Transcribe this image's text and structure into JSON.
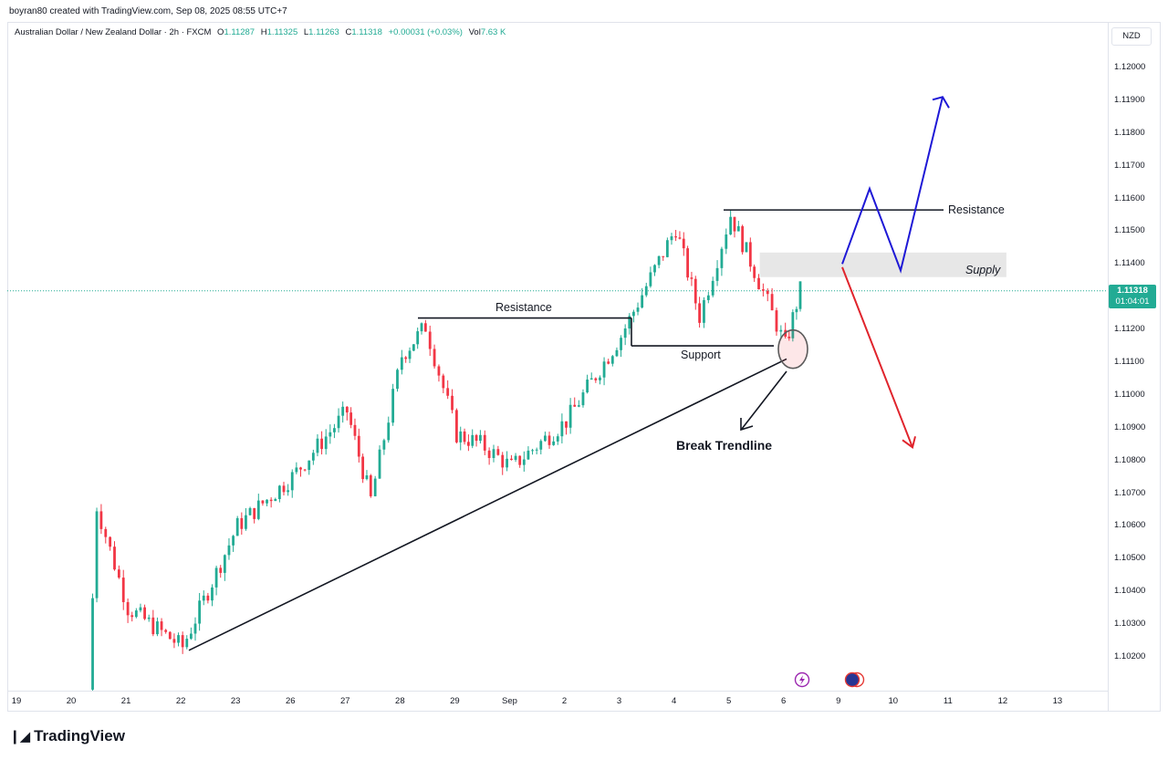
{
  "header": {
    "created_by": "boyran80 created with TradingView.com, Sep 08, 2025 08:55 UTC+7"
  },
  "legend": {
    "symbol": "Australian Dollar / New Zealand Dollar · 2h · FXCM",
    "open_label": "O",
    "open": "1.11287",
    "high_label": "H",
    "high": "1.11325",
    "low_label": "L",
    "low": "1.11263",
    "close_label": "C",
    "close": "1.11318",
    "change": "+0.00031 (+0.03%)",
    "vol_label": "Vol",
    "vol": "7.63 K"
  },
  "currency": "NZD",
  "last_price": {
    "price": "1.11318",
    "countdown": "01:04:01"
  },
  "colors": {
    "up": "#22ab94",
    "down": "#f23645",
    "bullish_path": "#1e18d6",
    "bearish_path": "#e0242c",
    "supply_zone": "#e7e7e7",
    "price_line": "#22ab94"
  },
  "annotations": {
    "resistance_left": "Resistance",
    "support": "Support",
    "resistance_right": "Resistance",
    "supply": "Supply",
    "break_trendline": "Break Trendline"
  },
  "bottom_icons": [
    "lightning-event-icon",
    "news-flag-icon"
  ],
  "brand": "TradingView",
  "chart_data": {
    "type": "candlestick",
    "title": "",
    "ylabel": "",
    "ylim": [
      1.1012,
      1.1212
    ],
    "y_ticks": [
      "1.10200",
      "1.10300",
      "1.10400",
      "1.10500",
      "1.10600",
      "1.10700",
      "1.10800",
      "1.10900",
      "1.11000",
      "1.11100",
      "1.11200",
      "1.11300",
      "1.11400",
      "1.11500",
      "1.11600",
      "1.11700",
      "1.11800",
      "1.11900",
      "1.12000"
    ],
    "x_ticks": [
      "19",
      "20",
      "21",
      "22",
      "23",
      "26",
      "27",
      "28",
      "29",
      "Sep",
      "2",
      "3",
      "4",
      "5",
      "6",
      "9",
      "10",
      "11",
      "12",
      "13"
    ],
    "last_close": 1.11318,
    "approx_swing_path": [
      {
        "x": "20",
        "y": 1.101
      },
      {
        "x": "20",
        "y": 1.1066
      },
      {
        "x": "21",
        "y": 1.1035
      },
      {
        "x": "22",
        "y": 1.1023
      },
      {
        "x": "23",
        "y": 1.106
      },
      {
        "x": "26",
        "y": 1.1075
      },
      {
        "x": "27",
        "y": 1.1095
      },
      {
        "x": "27",
        "y": 1.1068
      },
      {
        "x": "28",
        "y": 1.1112
      },
      {
        "x": "28",
        "y": 1.1121
      },
      {
        "x": "29",
        "y": 1.1088
      },
      {
        "x": "29",
        "y": 1.1085
      },
      {
        "x": "Sep",
        "y": 1.1078
      },
      {
        "x": "2",
        "y": 1.1092
      },
      {
        "x": "3",
        "y": 1.1118
      },
      {
        "x": "4",
        "y": 1.1151
      },
      {
        "x": "4",
        "y": 1.1124
      },
      {
        "x": "5",
        "y": 1.1155
      },
      {
        "x": "5",
        "y": 1.1138
      },
      {
        "x": "6",
        "y": 1.1115
      },
      {
        "x": "6",
        "y": 1.1132
      }
    ],
    "levels": {
      "resistance_left": 1.11235,
      "support": 1.1115,
      "resistance_right": 1.11565,
      "supply_zone": [
        1.1136,
        1.11435
      ]
    },
    "trendline": [
      {
        "x": "22",
        "y": 1.1022
      },
      {
        "x": "6",
        "y": 1.1111
      }
    ],
    "projection_bullish": [
      1.114,
      1.1163,
      1.1138,
      1.1191
    ],
    "projection_bearish": [
      1.1139,
      1.1084
    ]
  }
}
